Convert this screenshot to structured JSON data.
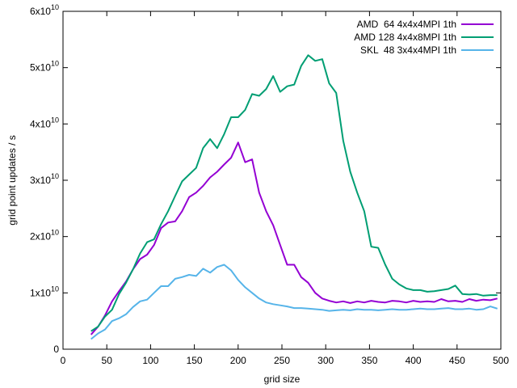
{
  "chart_data": {
    "type": "line",
    "title": "",
    "xlabel": "grid size",
    "ylabel": "grid point updates / s",
    "xlim": [
      0,
      500
    ],
    "ylim": [
      0,
      60000000000
    ],
    "x_ticks": [
      0,
      50,
      100,
      150,
      200,
      250,
      300,
      350,
      400,
      450,
      500
    ],
    "y_ticks": [
      {
        "value": 0,
        "mantissa": "0",
        "exp": ""
      },
      {
        "value": 10000000000,
        "mantissa": "1x10",
        "exp": "10"
      },
      {
        "value": 20000000000,
        "mantissa": "2x10",
        "exp": "10"
      },
      {
        "value": 30000000000,
        "mantissa": "3x10",
        "exp": "10"
      },
      {
        "value": 40000000000,
        "mantissa": "4x10",
        "exp": "10"
      },
      {
        "value": 50000000000,
        "mantissa": "5x10",
        "exp": "10"
      },
      {
        "value": 60000000000,
        "mantissa": "6x10",
        "exp": "10"
      }
    ],
    "grid": false,
    "legend_position": "top-right",
    "series": [
      {
        "name": "AMD  64 4x4x4MPI 1th",
        "color": "#9400d3",
        "x": [
          32,
          40,
          48,
          56,
          64,
          72,
          80,
          88,
          96,
          104,
          112,
          120,
          128,
          136,
          144,
          152,
          160,
          168,
          176,
          184,
          192,
          200,
          208,
          216,
          224,
          232,
          240,
          248,
          256,
          264,
          272,
          280,
          288,
          296,
          304,
          312,
          320,
          328,
          336,
          344,
          352,
          360,
          368,
          376,
          384,
          392,
          400,
          408,
          416,
          424,
          432,
          440,
          448,
          456,
          464,
          472,
          480,
          488,
          496
        ],
        "y": [
          2600000000.0,
          4000000000.0,
          6000000000.0,
          8500000000.0,
          10300000000.0,
          12000000000.0,
          14200000000.0,
          16000000000.0,
          16800000000.0,
          18500000000.0,
          21500000000.0,
          22500000000.0,
          22700000000.0,
          24500000000.0,
          27000000000.0,
          27800000000.0,
          29000000000.0,
          30500000000.0,
          31500000000.0,
          32800000000.0,
          34000000000.0,
          36700000000.0,
          33200000000.0,
          33700000000.0,
          27800000000.0,
          24500000000.0,
          22000000000.0,
          18500000000.0,
          15000000000.0,
          15000000000.0,
          12800000000.0,
          11800000000.0,
          10000000000.0,
          9000000000.0,
          8600000000.0,
          8300000000.0,
          8500000000.0,
          8200000000.0,
          8500000000.0,
          8300000000.0,
          8600000000.0,
          8400000000.0,
          8300000000.0,
          8600000000.0,
          8500000000.0,
          8300000000.0,
          8600000000.0,
          8400000000.0,
          8500000000.0,
          8400000000.0,
          8900000000.0,
          8500000000.0,
          8600000000.0,
          8400000000.0,
          8900000000.0,
          8600000000.0,
          8800000000.0,
          8700000000.0,
          9000000000.0
        ]
      },
      {
        "name": "AMD 128 4x4x8MPI 1th",
        "color": "#009e73",
        "x": [
          32,
          40,
          48,
          56,
          64,
          72,
          80,
          88,
          96,
          104,
          112,
          120,
          128,
          136,
          144,
          152,
          160,
          168,
          176,
          184,
          192,
          200,
          208,
          216,
          224,
          232,
          240,
          248,
          256,
          264,
          272,
          280,
          288,
          296,
          304,
          312,
          320,
          328,
          336,
          344,
          352,
          360,
          368,
          376,
          384,
          392,
          400,
          408,
          416,
          424,
          432,
          440,
          448,
          456,
          464,
          472,
          480,
          488,
          496
        ],
        "y": [
          3200000000.0,
          4000000000.0,
          5800000000.0,
          7000000000.0,
          9800000000.0,
          11800000000.0,
          14200000000.0,
          17000000000.0,
          19000000000.0,
          19500000000.0,
          22200000000.0,
          24500000000.0,
          27200000000.0,
          29800000000.0,
          31000000000.0,
          32200000000.0,
          35700000000.0,
          37300000000.0,
          35700000000.0,
          38200000000.0,
          41200000000.0,
          41200000000.0,
          42500000000.0,
          45300000000.0,
          45000000000.0,
          46200000000.0,
          48500000000.0,
          45700000000.0,
          46700000000.0,
          47000000000.0,
          50300000000.0,
          52200000000.0,
          51200000000.0,
          51500000000.0,
          47200000000.0,
          45500000000.0,
          37000000000.0,
          31500000000.0,
          27800000000.0,
          24500000000.0,
          18200000000.0,
          18000000000.0,
          15000000000.0,
          12500000000.0,
          11500000000.0,
          10800000000.0,
          10500000000.0,
          10500000000.0,
          10200000000.0,
          10300000000.0,
          10500000000.0,
          10700000000.0,
          11300000000.0,
          9800000000.0,
          9700000000.0,
          9800000000.0,
          9500000000.0,
          9600000000.0,
          9600000000.0
        ]
      },
      {
        "name": "SKL  48 3x4x4MPI 1th",
        "color": "#56b4e9",
        "x": [
          32,
          40,
          48,
          56,
          64,
          72,
          80,
          88,
          96,
          104,
          112,
          120,
          128,
          136,
          144,
          152,
          160,
          168,
          176,
          184,
          192,
          200,
          208,
          216,
          224,
          232,
          240,
          248,
          256,
          264,
          272,
          280,
          288,
          296,
          304,
          312,
          320,
          328,
          336,
          344,
          352,
          360,
          368,
          376,
          384,
          392,
          400,
          408,
          416,
          424,
          432,
          440,
          448,
          456,
          464,
          472,
          480,
          488,
          496
        ],
        "y": [
          1800000000.0,
          2800000000.0,
          3500000000.0,
          5000000000.0,
          5500000000.0,
          6200000000.0,
          7500000000.0,
          8500000000.0,
          8800000000.0,
          10000000000.0,
          11200000000.0,
          11200000000.0,
          12500000000.0,
          12800000000.0,
          13200000000.0,
          13000000000.0,
          14300000000.0,
          13600000000.0,
          14600000000.0,
          15000000000.0,
          14000000000.0,
          12300000000.0,
          11000000000.0,
          10000000000.0,
          9000000000.0,
          8300000000.0,
          8000000000.0,
          7800000000.0,
          7600000000.0,
          7300000000.0,
          7300000000.0,
          7200000000.0,
          7100000000.0,
          7000000000.0,
          6800000000.0,
          6900000000.0,
          7000000000.0,
          6900000000.0,
          7100000000.0,
          7000000000.0,
          7000000000.0,
          6900000000.0,
          7000000000.0,
          7100000000.0,
          7000000000.0,
          7000000000.0,
          7100000000.0,
          7200000000.0,
          7100000000.0,
          7100000000.0,
          7200000000.0,
          7300000000.0,
          7100000000.0,
          7100000000.0,
          7200000000.0,
          7000000000.0,
          7100000000.0,
          7600000000.0,
          7200000000.0
        ]
      }
    ]
  }
}
